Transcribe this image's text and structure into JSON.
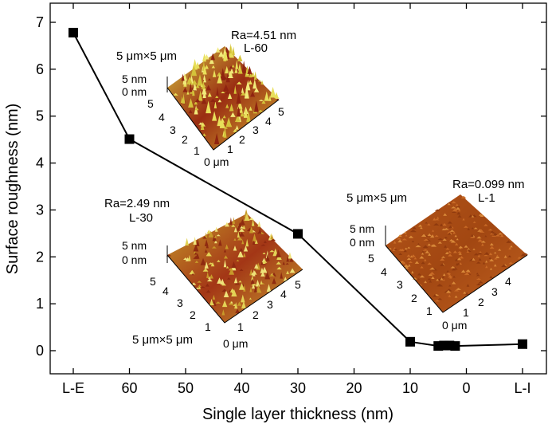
{
  "chart_data": {
    "type": "line",
    "xlabel": "Single layer thickness (nm)",
    "ylabel": "Surface roughness (nm)",
    "ylim": [
      -0.5,
      7.2
    ],
    "y_ticks": [
      "0",
      "1",
      "2",
      "3",
      "4",
      "5",
      "6",
      "7"
    ],
    "x_tick_labels": [
      "L-E",
      "60",
      "50",
      "40",
      "30",
      "20",
      "10",
      "0",
      "L-I"
    ],
    "grid": false,
    "series": [
      {
        "color": "#000000",
        "points": [
          {
            "x": "L-E",
            "y": 6.78
          },
          {
            "x": "60",
            "y": 4.51
          },
          {
            "x": "30",
            "y": 2.49
          },
          {
            "x": "10",
            "y": 0.19
          },
          {
            "x": "5",
            "y": 0.1
          },
          {
            "x": "4",
            "y": 0.11
          },
          {
            "x": "3",
            "y": 0.11
          },
          {
            "x": "2",
            "y": 0.1
          },
          {
            "x": "L-I",
            "y": 0.14
          }
        ]
      }
    ],
    "insets": [
      {
        "ra": "Ra=4.51 nm",
        "sample": "L-60",
        "scan_size": "5 μm×5 μm",
        "z_labels": [
          "5 nm",
          "0 nm"
        ],
        "axis_ticks": [
          "0 μm",
          "1",
          "2",
          "3",
          "4",
          "5"
        ]
      },
      {
        "ra": "Ra=2.49 nm",
        "sample": "L-30",
        "scan_size": "5 μm×5 μm",
        "z_labels": [
          "5 nm",
          "0 nm"
        ],
        "axis_ticks": [
          "0 μm",
          "1",
          "2",
          "3",
          "4",
          "5"
        ]
      },
      {
        "ra": "Ra=0.099 nm",
        "sample": "L-1",
        "scan_size": "5 μm×5 μm",
        "z_labels": [
          "5 nm",
          "0 nm"
        ],
        "axis_ticks": [
          "0 μm",
          "1",
          "2",
          "3",
          "4",
          "5"
        ]
      }
    ]
  }
}
